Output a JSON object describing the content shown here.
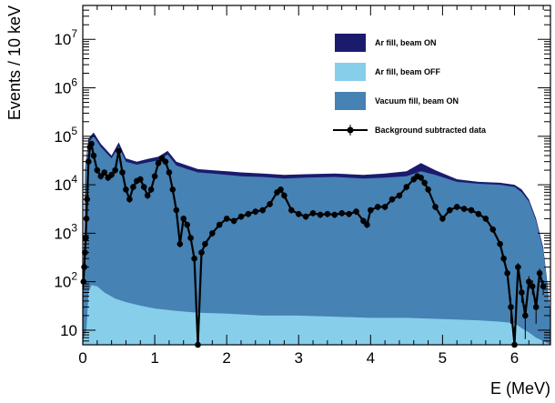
{
  "chart_data": {
    "type": "area",
    "title": "",
    "xlabel": "E (MeV)",
    "ylabel": "Events / 10 keV",
    "xlim": [
      0,
      6.5
    ],
    "ylim": [
      5,
      50000000
    ],
    "y_scale": "log",
    "grid": false,
    "legend_position": "top-right",
    "x_ticks": [
      {
        "value": 0,
        "label": "0"
      },
      {
        "value": 1,
        "label": "1"
      },
      {
        "value": 2,
        "label": "2"
      },
      {
        "value": 3,
        "label": "3"
      },
      {
        "value": 4,
        "label": "4"
      },
      {
        "value": 5,
        "label": "5"
      },
      {
        "value": 6,
        "label": "6"
      }
    ],
    "y_ticks": [
      {
        "value": 10,
        "label": "10",
        "base": "10",
        "exp": ""
      },
      {
        "value": 100,
        "label": "10^2",
        "base": "10",
        "exp": "2"
      },
      {
        "value": 1000,
        "label": "10^3",
        "base": "10",
        "exp": "3"
      },
      {
        "value": 10000,
        "label": "10^4",
        "base": "10",
        "exp": "4"
      },
      {
        "value": 100000,
        "label": "10^5",
        "base": "10",
        "exp": "5"
      },
      {
        "value": 1000000,
        "label": "10^6",
        "base": "10",
        "exp": "6"
      },
      {
        "value": 10000000,
        "label": "10^7",
        "base": "10",
        "exp": "7"
      }
    ],
    "series": [
      {
        "name": "Ar fill, beam ON",
        "kind": "filled",
        "color": "#1b1b6e",
        "x": [
          0,
          0.03,
          0.08,
          0.15,
          0.25,
          0.4,
          0.5,
          0.6,
          0.75,
          0.9,
          1.05,
          1.18,
          1.3,
          1.45,
          1.6,
          1.8,
          2.0,
          2.2,
          2.5,
          2.8,
          3.1,
          3.5,
          3.9,
          4.2,
          4.5,
          4.7,
          4.9,
          5.2,
          5.5,
          5.8,
          6.0,
          6.1,
          6.2,
          6.3,
          6.4,
          6.45,
          6.5
        ],
        "y": [
          8,
          20000,
          90000,
          120000,
          70000,
          40000,
          75000,
          35000,
          30000,
          34000,
          38000,
          50000,
          30000,
          25000,
          21000,
          20000,
          19000,
          18000,
          17000,
          16000,
          16500,
          17000,
          16000,
          17000,
          19000,
          28000,
          20000,
          13000,
          11500,
          11000,
          10000,
          8000,
          5000,
          2000,
          500,
          120,
          20
        ]
      },
      {
        "name": "Vacuum fill, beam ON",
        "kind": "filled",
        "color": "#4682b4",
        "x": [
          0,
          0.03,
          0.08,
          0.15,
          0.25,
          0.4,
          0.5,
          0.6,
          0.75,
          0.9,
          1.05,
          1.18,
          1.3,
          1.45,
          1.6,
          1.8,
          2.0,
          2.2,
          2.5,
          2.8,
          3.1,
          3.5,
          3.9,
          4.2,
          4.5,
          4.7,
          4.9,
          5.2,
          5.5,
          5.8,
          6.0,
          6.1,
          6.2,
          6.3,
          6.4,
          6.45,
          6.5
        ],
        "y": [
          7,
          17000,
          75000,
          100000,
          60000,
          35000,
          62000,
          30000,
          26000,
          29000,
          32000,
          42000,
          25000,
          21000,
          18000,
          17000,
          16000,
          15000,
          14500,
          13500,
          14000,
          14500,
          13500,
          14000,
          15000,
          19000,
          16000,
          11500,
          10500,
          10000,
          9000,
          7000,
          4500,
          1800,
          450,
          110,
          18
        ]
      },
      {
        "name": "Ar fill, beam OFF",
        "kind": "filled",
        "color": "#87ceeb",
        "x": [
          0,
          0.05,
          0.08,
          0.12,
          0.2,
          0.3,
          0.45,
          0.6,
          0.8,
          1.0,
          1.3,
          1.6,
          2.0,
          2.5,
          3.0,
          3.5,
          4.0,
          4.5,
          5.0,
          5.5,
          5.8,
          6.0,
          6.1,
          6.2,
          6.3,
          6.4,
          6.5
        ],
        "y": [
          6,
          10,
          60,
          85,
          80,
          60,
          45,
          38,
          32,
          28,
          25,
          23,
          22,
          20,
          20,
          19,
          18,
          18,
          17,
          16,
          15,
          14,
          11,
          9,
          7,
          6,
          5
        ]
      },
      {
        "name": "Background subtracted data",
        "kind": "points",
        "color": "#000000",
        "x": [
          0.01,
          0.02,
          0.03,
          0.04,
          0.05,
          0.06,
          0.08,
          0.1,
          0.12,
          0.15,
          0.2,
          0.25,
          0.3,
          0.35,
          0.4,
          0.45,
          0.5,
          0.55,
          0.6,
          0.65,
          0.7,
          0.75,
          0.8,
          0.85,
          0.9,
          0.95,
          1.0,
          1.05,
          1.1,
          1.15,
          1.2,
          1.25,
          1.3,
          1.35,
          1.4,
          1.45,
          1.5,
          1.55,
          1.6,
          1.65,
          1.7,
          1.8,
          1.9,
          2.0,
          2.1,
          2.2,
          2.3,
          2.4,
          2.5,
          2.6,
          2.7,
          2.75,
          2.8,
          2.9,
          3.0,
          3.1,
          3.2,
          3.3,
          3.4,
          3.5,
          3.6,
          3.7,
          3.8,
          3.9,
          3.95,
          4.0,
          4.1,
          4.2,
          4.3,
          4.4,
          4.5,
          4.6,
          4.65,
          4.7,
          4.75,
          4.8,
          4.9,
          5.0,
          5.1,
          5.2,
          5.3,
          5.4,
          5.5,
          5.6,
          5.7,
          5.8,
          5.85,
          5.9,
          5.95,
          6.0,
          6.05,
          6.1,
          6.15,
          6.2,
          6.25,
          6.3,
          6.35,
          6.4
        ],
        "y": [
          100,
          200,
          400,
          800,
          2000,
          5000,
          30000,
          60000,
          70000,
          40000,
          20000,
          15000,
          18000,
          14000,
          16000,
          20000,
          50000,
          18000,
          8000,
          5000,
          9000,
          12000,
          13000,
          9000,
          6000,
          8000,
          15000,
          28000,
          35000,
          30000,
          18000,
          8000,
          3000,
          600,
          2000,
          1500,
          800,
          300,
          5,
          400,
          600,
          1000,
          1500,
          2000,
          1800,
          2200,
          2500,
          2800,
          3000,
          4000,
          7000,
          8000,
          6000,
          3000,
          2500,
          2200,
          2600,
          2400,
          2500,
          2400,
          2600,
          2500,
          2800,
          1800,
          1500,
          3000,
          3500,
          3500,
          5000,
          6000,
          9000,
          13000,
          15000,
          14000,
          11000,
          8000,
          3500,
          2000,
          3000,
          3500,
          3200,
          3000,
          2500,
          2000,
          1200,
          600,
          300,
          150,
          30,
          5,
          200,
          60,
          20,
          100,
          80,
          30,
          150,
          80
        ]
      }
    ]
  }
}
